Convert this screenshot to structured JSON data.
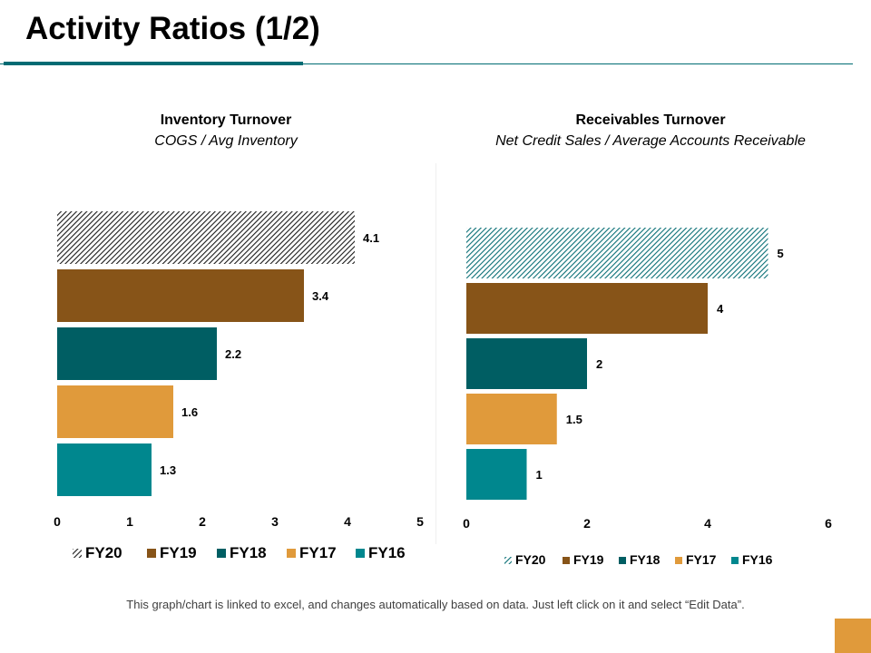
{
  "page": {
    "title": "Activity Ratios (1/2)",
    "footer_note": "This graph/chart is linked to excel, and changes automatically based on data. Just left click on it and select “Edit Data”.",
    "accent_color": "#006b73",
    "corner_color": "#e09a3b"
  },
  "chart_data": [
    {
      "type": "bar",
      "orientation": "horizontal",
      "title": "Inventory Turnover",
      "subtitle": "COGS / Avg Inventory",
      "categories": [
        "FY20",
        "FY19",
        "FY18",
        "FY17",
        "FY16"
      ],
      "values": [
        4.1,
        3.4,
        2.2,
        1.6,
        1.3
      ],
      "value_labels": [
        "4.1",
        "3.4",
        "2.2",
        "1.6",
        "1.3"
      ],
      "xlim": [
        0,
        5
      ],
      "xticks": [
        0,
        1,
        2,
        3,
        4,
        5
      ],
      "grid": false,
      "legend": "bottom",
      "colors": [
        "hatched-black",
        "#875418",
        "#005e63",
        "#e09a3b",
        "#00878e"
      ]
    },
    {
      "type": "bar",
      "orientation": "horizontal",
      "title": "Receivables Turnover",
      "subtitle": "Net Credit Sales / Average Accounts Receivable",
      "categories": [
        "FY20",
        "FY19",
        "FY18",
        "FY17",
        "FY16"
      ],
      "values": [
        5,
        4,
        2,
        1.5,
        1
      ],
      "value_labels": [
        "5",
        "4",
        "2",
        "1.5",
        "1"
      ],
      "xlim": [
        0,
        6
      ],
      "xticks": [
        0,
        2,
        4,
        6
      ],
      "grid": false,
      "legend": "bottom",
      "colors": [
        "hatched-teal",
        "#875418",
        "#005e63",
        "#e09a3b",
        "#00878e"
      ]
    }
  ]
}
